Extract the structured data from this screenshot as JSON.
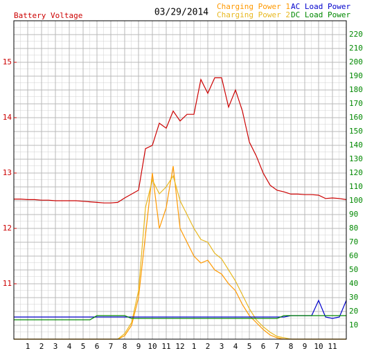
{
  "chart_data": {
    "type": "line",
    "title": "03/29/2014",
    "y_label": "Battery Voltage",
    "x": [
      0,
      0.5,
      1,
      1.5,
      2,
      2.5,
      3,
      3.5,
      4,
      4.5,
      5,
      5.5,
      6,
      6.5,
      7,
      7.5,
      8,
      8.5,
      9,
      9.5,
      10,
      10.5,
      11,
      11.5,
      12,
      12.5,
      13,
      13.5,
      14,
      14.5,
      15,
      15.5,
      16,
      16.5,
      17,
      17.5,
      18,
      18.5,
      19,
      19.5,
      20,
      20.5,
      21,
      21.5,
      22,
      22.5,
      23,
      23.5,
      24
    ],
    "xlim": [
      0,
      24
    ],
    "xticks": [
      1,
      2,
      3,
      4,
      5,
      6,
      7,
      8,
      9,
      10,
      11,
      12,
      {
        "value": 13,
        "label": "1"
      },
      {
        "value": 14,
        "label": "2"
      },
      {
        "value": 15,
        "label": "3"
      },
      {
        "value": 16,
        "label": "4"
      },
      {
        "value": 17,
        "label": "5"
      },
      {
        "value": 18,
        "label": "6"
      },
      {
        "value": 19,
        "label": "7"
      },
      {
        "value": 20,
        "label": "8"
      },
      {
        "value": 21,
        "label": "9"
      },
      {
        "value": 22,
        "label": "10"
      },
      {
        "value": 23,
        "label": "11"
      }
    ],
    "ylim": [
      10,
      15.75
    ],
    "yticks": [
      11,
      12,
      13,
      14,
      15
    ],
    "y2lim": [
      0,
      230
    ],
    "y2ticks": [
      10,
      20,
      30,
      40,
      50,
      60,
      70,
      80,
      90,
      100,
      110,
      120,
      130,
      140,
      150,
      160,
      170,
      180,
      190,
      200,
      210,
      220
    ],
    "grid": true,
    "series": [
      {
        "name": "Battery Voltage",
        "color": "#cc0000",
        "axis": "y",
        "values": [
          12.53,
          12.53,
          12.52,
          12.52,
          12.51,
          12.51,
          12.5,
          12.5,
          12.5,
          12.5,
          12.49,
          12.48,
          12.47,
          12.46,
          12.46,
          12.47,
          12.55,
          12.62,
          12.69,
          13.44,
          13.5,
          13.9,
          13.81,
          14.12,
          13.94,
          14.06,
          14.06,
          14.69,
          14.44,
          14.72,
          14.72,
          14.19,
          14.5,
          14.12,
          13.56,
          13.31,
          13.0,
          12.78,
          12.69,
          12.66,
          12.62,
          12.62,
          12.61,
          12.61,
          12.6,
          12.54,
          12.55,
          12.54,
          12.52
        ]
      },
      {
        "name": "Charging Power 1",
        "color": "#ff9900",
        "axis": "y2",
        "values": [
          0,
          0,
          0,
          0,
          0,
          0,
          0,
          0,
          0,
          0,
          0,
          0,
          0,
          0,
          0,
          0,
          2.5,
          10,
          30,
          75,
          120,
          80,
          95,
          125,
          80,
          70,
          60,
          55,
          57,
          50,
          47,
          40,
          35,
          25,
          17,
          12,
          7,
          3,
          1,
          0,
          0,
          0,
          0,
          0,
          0,
          0,
          0,
          0,
          0
        ]
      },
      {
        "name": "Charging Power 2",
        "color": "#e8b820",
        "axis": "y2",
        "values": [
          0,
          0,
          0,
          0,
          0,
          0,
          0,
          0,
          0,
          0,
          0,
          0,
          0,
          0,
          0,
          0,
          4,
          12,
          35,
          95,
          115,
          105,
          110,
          118,
          100,
          90,
          80,
          72,
          70,
          62,
          58,
          50,
          42,
          32,
          22,
          14,
          9,
          5,
          2,
          1,
          0,
          0,
          0,
          0,
          0,
          0,
          0,
          0,
          0
        ]
      },
      {
        "name": "AC Load Power",
        "color": "#0000cc",
        "axis": "y2",
        "values": [
          16,
          16,
          16,
          16,
          16,
          16,
          16,
          16,
          16,
          16,
          16,
          16,
          16,
          16,
          16,
          16,
          16,
          16,
          16,
          16,
          16,
          16,
          16,
          16,
          16,
          16,
          16,
          16,
          16,
          16,
          16,
          16,
          16,
          16,
          16,
          16,
          16,
          16,
          16,
          16,
          17,
          17,
          17,
          17,
          28,
          16,
          15,
          16,
          28
        ]
      },
      {
        "name": "DC Load Power",
        "color": "#008800",
        "axis": "y2",
        "values": [
          14,
          14,
          14,
          14,
          14,
          14,
          14,
          14,
          14,
          14,
          14,
          14,
          17,
          17,
          17,
          17,
          17,
          15,
          15,
          15,
          15,
          15,
          15,
          15,
          15,
          15,
          15,
          15,
          15,
          15,
          15,
          15,
          15,
          15,
          15,
          15,
          15,
          15,
          15,
          17,
          17,
          17,
          17,
          17,
          17,
          17,
          17,
          17,
          17
        ]
      }
    ]
  }
}
